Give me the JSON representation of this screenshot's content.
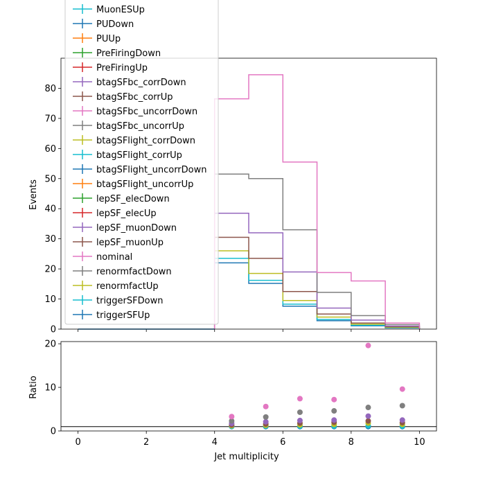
{
  "chart_data": {
    "type": "line",
    "x_edges": [
      4,
      5,
      6,
      7,
      8,
      9,
      10
    ],
    "top": {
      "ylabel": "Events",
      "ylim": [
        0,
        90
      ],
      "yticks": [
        0,
        10,
        20,
        30,
        40,
        50,
        60,
        70,
        80
      ],
      "series": [
        {
          "name": "nominal",
          "color": "#e377c2",
          "values": [
            76.5,
            84.5,
            55.5,
            18.8,
            16.0,
            2.0
          ]
        },
        {
          "name": "renormfactDown",
          "color": "#7f7f7f",
          "values": [
            51.5,
            50.0,
            33.0,
            12.2,
            4.5,
            1.5
          ]
        },
        {
          "name": "lepSF_muonDown",
          "color": "#9467bd",
          "values": [
            38.5,
            32.0,
            19.0,
            7.0,
            3.0,
            1.0
          ]
        },
        {
          "name": "lepSF_muonUp",
          "color": "#8c564b",
          "values": [
            30.5,
            23.5,
            12.5,
            5.0,
            2.0,
            0.8
          ]
        },
        {
          "name": "renormfactUp",
          "color": "#bcbd22",
          "values": [
            26.0,
            18.5,
            9.5,
            4.0,
            1.6,
            0.6
          ]
        },
        {
          "name": "triggerSFDown",
          "color": "#17becf",
          "values": [
            23.5,
            16.2,
            8.3,
            3.2,
            1.3,
            0.5
          ]
        },
        {
          "name": "triggerSFUp",
          "color": "#1f77b4",
          "values": [
            22.0,
            15.2,
            7.6,
            2.8,
            1.1,
            0.4
          ]
        }
      ],
      "legend_entries": [
        {
          "name": "MuonESUp",
          "color": "#17becf"
        },
        {
          "name": "PUDown",
          "color": "#1f77b4"
        },
        {
          "name": "PUUp",
          "color": "#ff7f0e"
        },
        {
          "name": "PreFiringDown",
          "color": "#2ca02c"
        },
        {
          "name": "PreFiringUp",
          "color": "#d62728"
        },
        {
          "name": "btagSFbc_corrDown",
          "color": "#9467bd"
        },
        {
          "name": "btagSFbc_corrUp",
          "color": "#8c564b"
        },
        {
          "name": "btagSFbc_uncorrDown",
          "color": "#e377c2"
        },
        {
          "name": "btagSFbc_uncorrUp",
          "color": "#7f7f7f"
        },
        {
          "name": "btagSFlight_corrDown",
          "color": "#bcbd22"
        },
        {
          "name": "btagSFlight_corrUp",
          "color": "#17becf"
        },
        {
          "name": "btagSFlight_uncorrDown",
          "color": "#1f77b4"
        },
        {
          "name": "btagSFlight_uncorrUp",
          "color": "#ff7f0e"
        },
        {
          "name": "lepSF_elecDown",
          "color": "#2ca02c"
        },
        {
          "name": "lepSF_elecUp",
          "color": "#d62728"
        },
        {
          "name": "lepSF_muonDown",
          "color": "#9467bd"
        },
        {
          "name": "lepSF_muonUp",
          "color": "#8c564b"
        },
        {
          "name": "nominal",
          "color": "#e377c2"
        },
        {
          "name": "renormfactDown",
          "color": "#7f7f7f"
        },
        {
          "name": "renormfactUp",
          "color": "#bcbd22"
        },
        {
          "name": "triggerSFDown",
          "color": "#17becf"
        },
        {
          "name": "triggerSFUp",
          "color": "#1f77b4"
        }
      ]
    },
    "ratio": {
      "type": "scatter",
      "ylabel": "Ratio",
      "ylim": [
        0,
        20.5
      ],
      "yticks": [
        0,
        10,
        20
      ],
      "reference_line": 1,
      "x": [
        4.5,
        5.5,
        6.5,
        7.5,
        8.5,
        9.5
      ],
      "series": [
        {
          "color": "#e377c2",
          "values": [
            3.3,
            5.6,
            7.4,
            7.2,
            19.6,
            9.6
          ]
        },
        {
          "color": "#7f7f7f",
          "values": [
            2.3,
            3.2,
            4.3,
            4.6,
            5.4,
            5.8
          ]
        },
        {
          "color": "#9467bd",
          "values": [
            1.75,
            2.1,
            2.4,
            2.5,
            3.4,
            2.5
          ]
        },
        {
          "color": "#8c564b",
          "values": [
            1.4,
            1.6,
            1.8,
            2.0,
            2.3,
            1.9
          ]
        },
        {
          "color": "#bcbd22",
          "values": [
            1.2,
            1.3,
            1.4,
            1.5,
            1.8,
            1.5
          ]
        },
        {
          "color": "#17becf",
          "values": [
            1.05,
            1.1,
            1.1,
            1.1,
            1.2,
            1.1
          ]
        },
        {
          "color": "#1f77b4",
          "values": [
            1.0,
            1.0,
            1.0,
            1.0,
            1.0,
            1.0
          ]
        }
      ]
    },
    "xlabel": "Jet multiplicity",
    "xlim": [
      -0.5,
      10.5
    ],
    "xticks": [
      0,
      2,
      4,
      6,
      8,
      10
    ]
  }
}
